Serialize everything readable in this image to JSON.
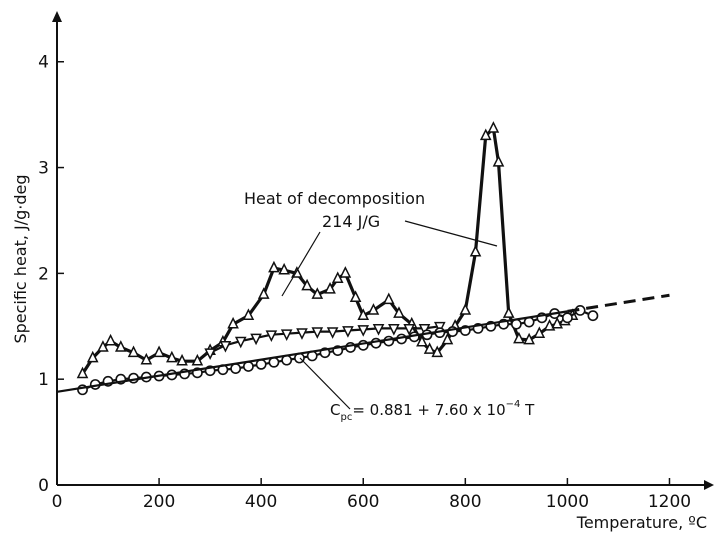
{
  "chart_data": {
    "type": "line",
    "title": "",
    "xlabel": "Temperature, ºC",
    "ylabel": "Specific heat, J/g·deg",
    "xlim": [
      0,
      1250
    ],
    "ylim": [
      0,
      4.3
    ],
    "x_ticks": [
      0,
      200,
      400,
      600,
      800,
      1000,
      1200
    ],
    "y_ticks": [
      0,
      1,
      2,
      3,
      4
    ],
    "grid": false,
    "series": [
      {
        "marker": "triangle-up",
        "style": "thick",
        "points": [
          [
            50,
            1.05
          ],
          [
            70,
            1.2
          ],
          [
            90,
            1.3
          ],
          [
            105,
            1.36
          ],
          [
            125,
            1.3
          ],
          [
            150,
            1.25
          ],
          [
            175,
            1.18
          ],
          [
            200,
            1.25
          ],
          [
            225,
            1.2
          ],
          [
            245,
            1.17
          ],
          [
            275,
            1.17
          ],
          [
            300,
            1.27
          ],
          [
            325,
            1.35
          ],
          [
            345,
            1.52
          ],
          [
            375,
            1.6
          ],
          [
            405,
            1.8
          ],
          [
            425,
            2.05
          ],
          [
            445,
            2.03
          ],
          [
            470,
            2.0
          ],
          [
            490,
            1.88
          ],
          [
            510,
            1.8
          ],
          [
            535,
            1.85
          ],
          [
            550,
            1.95
          ],
          [
            565,
            2.0
          ],
          [
            585,
            1.77
          ],
          [
            600,
            1.6
          ],
          [
            620,
            1.65
          ],
          [
            650,
            1.75
          ],
          [
            670,
            1.62
          ],
          [
            695,
            1.52
          ],
          [
            715,
            1.35
          ],
          [
            730,
            1.28
          ],
          [
            745,
            1.25
          ],
          [
            765,
            1.37
          ],
          [
            780,
            1.5
          ],
          [
            800,
            1.65
          ],
          [
            820,
            2.2
          ],
          [
            840,
            3.3
          ],
          [
            855,
            3.37
          ],
          [
            865,
            3.05
          ],
          [
            885,
            1.62
          ],
          [
            905,
            1.38
          ],
          [
            925,
            1.37
          ],
          [
            945,
            1.43
          ],
          [
            965,
            1.5
          ],
          [
            980,
            1.52
          ],
          [
            995,
            1.55
          ],
          [
            1010,
            1.6
          ]
        ]
      },
      {
        "marker": "triangle-down",
        "style": "normal",
        "points": [
          [
            300,
            1.25
          ],
          [
            330,
            1.32
          ],
          [
            360,
            1.36
          ],
          [
            390,
            1.39
          ],
          [
            420,
            1.42
          ],
          [
            450,
            1.43
          ],
          [
            480,
            1.44
          ],
          [
            510,
            1.45
          ],
          [
            540,
            1.45
          ],
          [
            570,
            1.46
          ],
          [
            600,
            1.47
          ],
          [
            630,
            1.48
          ],
          [
            660,
            1.48
          ],
          [
            690,
            1.48
          ],
          [
            720,
            1.48
          ],
          [
            750,
            1.5
          ]
        ]
      },
      {
        "marker": "circle",
        "style": "normal",
        "points": [
          [
            50,
            0.9
          ],
          [
            75,
            0.95
          ],
          [
            100,
            0.98
          ],
          [
            125,
            1.0
          ],
          [
            150,
            1.01
          ],
          [
            175,
            1.02
          ],
          [
            200,
            1.03
          ],
          [
            225,
            1.04
          ],
          [
            250,
            1.05
          ],
          [
            275,
            1.06
          ],
          [
            300,
            1.08
          ],
          [
            325,
            1.09
          ],
          [
            350,
            1.1
          ],
          [
            375,
            1.12
          ],
          [
            400,
            1.14
          ],
          [
            425,
            1.16
          ],
          [
            450,
            1.18
          ],
          [
            475,
            1.2
          ],
          [
            500,
            1.22
          ],
          [
            525,
            1.25
          ],
          [
            550,
            1.27
          ],
          [
            575,
            1.3
          ],
          [
            600,
            1.32
          ],
          [
            625,
            1.34
          ],
          [
            650,
            1.36
          ],
          [
            675,
            1.38
          ],
          [
            700,
            1.4
          ],
          [
            725,
            1.42
          ],
          [
            750,
            1.44
          ],
          [
            775,
            1.45
          ],
          [
            800,
            1.46
          ],
          [
            825,
            1.48
          ],
          [
            850,
            1.5
          ],
          [
            875,
            1.52
          ],
          [
            900,
            1.52
          ],
          [
            925,
            1.54
          ],
          [
            950,
            1.58
          ],
          [
            975,
            1.62
          ],
          [
            1000,
            1.58
          ],
          [
            1025,
            1.65
          ],
          [
            1050,
            1.6
          ]
        ]
      },
      {
        "style": "fit",
        "points": [
          [
            0,
            0.881
          ],
          [
            1000,
            1.641
          ]
        ],
        "extrapolation": [
          [
            1000,
            1.641
          ],
          [
            1200,
            1.793
          ]
        ]
      }
    ],
    "annotations": [
      {
        "text": "Heat of decomposition",
        "x_data": 500,
        "y_data": 2.68
      },
      {
        "text": "214  J/G",
        "x_data": 580,
        "y_data": 2.45
      },
      {
        "equation_prefix": "C",
        "equation_sub": "pc",
        "equation_main": "= 0.881 + 7.60 x 10",
        "equation_sup": "−4",
        "equation_tail": " T"
      }
    ]
  }
}
